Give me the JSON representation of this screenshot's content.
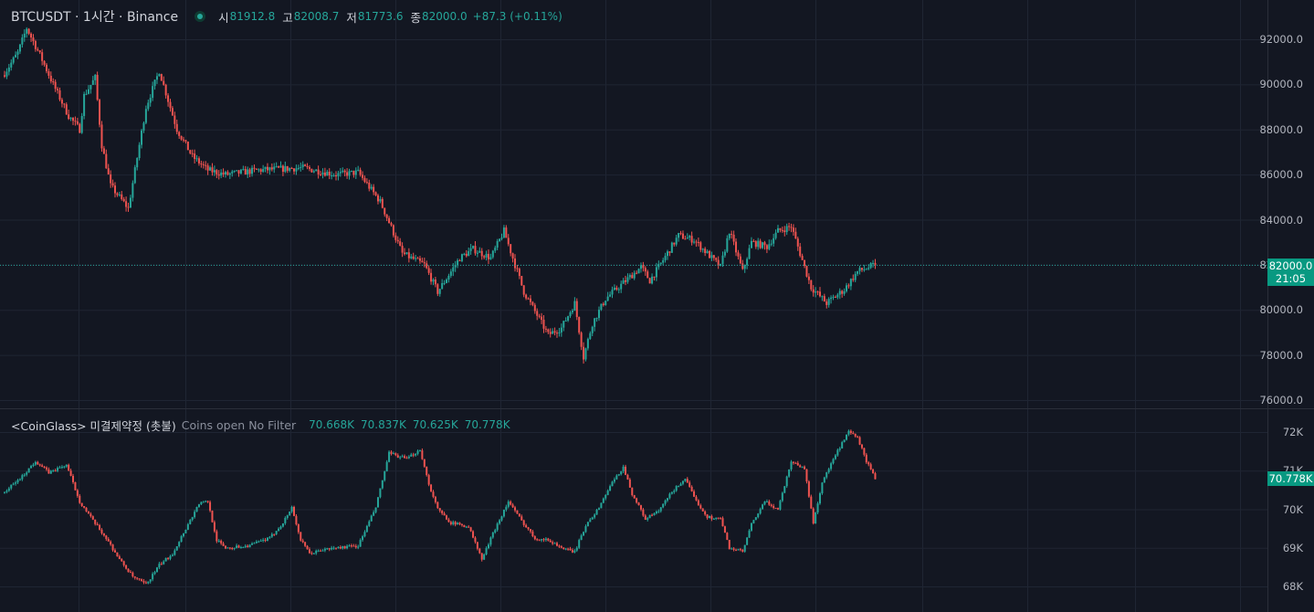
{
  "header": {
    "symbol": "BTCUSDT · 1시간 · Binance",
    "open_label": "시",
    "open": "81912.8",
    "high_label": "고",
    "high": "82008.7",
    "low_label": "저",
    "low": "81773.6",
    "close_label": "종",
    "close": "82000.0",
    "change": "+87.3 (+0.11%)"
  },
  "indicator": {
    "name": "<CoinGlass> 미결제약정 (촛불)",
    "params": "Coins open No Filter",
    "o": "70.668K",
    "h": "70.837K",
    "l": "70.625K",
    "c": "70.778K"
  },
  "price_tag": {
    "price": "82000.0",
    "time": "21:05"
  },
  "oi_tag": "70.778K",
  "colors": {
    "up": "#26a69a",
    "down": "#ef5350",
    "bg": "#131722",
    "grid": "#1f2533",
    "tag": "#089981"
  },
  "chart_data": [
    {
      "type": "candlestick",
      "title": "BTCUSDT · 1시간 · Binance",
      "y_ticks": [
        92000,
        90000,
        88000,
        86000,
        84000,
        82000,
        80000,
        78000,
        76000
      ],
      "y_tick_labels": [
        "92000.0",
        "90000.0",
        "88000.0",
        "86000.0",
        "84000.0",
        "82000.0",
        "80000.0",
        "78000.0",
        "76000.0"
      ],
      "ylim": [
        75700,
        93300
      ],
      "last_price": 82000.0,
      "key_points": [
        [
          0,
          90500
        ],
        [
          6,
          91400
        ],
        [
          10,
          92500
        ],
        [
          16,
          91300
        ],
        [
          22,
          90000
        ],
        [
          29,
          88600
        ],
        [
          34,
          88000
        ],
        [
          36,
          89500
        ],
        [
          41,
          90300
        ],
        [
          44,
          87300
        ],
        [
          48,
          85500
        ],
        [
          56,
          84500
        ],
        [
          64,
          89000
        ],
        [
          70,
          90600
        ],
        [
          78,
          88000
        ],
        [
          85,
          86800
        ],
        [
          92,
          86200
        ],
        [
          100,
          86000
        ],
        [
          115,
          86200
        ],
        [
          135,
          86300
        ],
        [
          150,
          86000
        ],
        [
          160,
          86100
        ],
        [
          170,
          84800
        ],
        [
          180,
          82500
        ],
        [
          190,
          82000
        ],
        [
          196,
          80800
        ],
        [
          206,
          82300
        ],
        [
          212,
          82700
        ],
        [
          220,
          82300
        ],
        [
          226,
          83500
        ],
        [
          235,
          80800
        ],
        [
          246,
          78900
        ],
        [
          252,
          79200
        ],
        [
          258,
          80300
        ],
        [
          262,
          77900
        ],
        [
          266,
          79400
        ],
        [
          272,
          80500
        ],
        [
          280,
          81200
        ],
        [
          288,
          81900
        ],
        [
          292,
          81300
        ],
        [
          296,
          81900
        ],
        [
          305,
          83300
        ],
        [
          312,
          83100
        ],
        [
          318,
          82500
        ],
        [
          324,
          81900
        ],
        [
          328,
          83500
        ],
        [
          334,
          81700
        ],
        [
          338,
          83000
        ],
        [
          345,
          82800
        ],
        [
          350,
          83500
        ],
        [
          356,
          83700
        ],
        [
          360,
          82500
        ],
        [
          365,
          81000
        ],
        [
          372,
          80300
        ],
        [
          380,
          80900
        ],
        [
          386,
          81700
        ],
        [
          394,
          82000
        ]
      ]
    },
    {
      "type": "candlestick",
      "title": "<CoinGlass> 미결제약정 (촛불)",
      "y_ticks": [
        72,
        71,
        70,
        69,
        68
      ],
      "y_tick_labels": [
        "72K",
        "71K",
        "70K",
        "69K",
        "68K"
      ],
      "ylim": [
        67.3,
        72.4
      ],
      "last_value": 70.778,
      "key_points": [
        [
          0,
          70.45
        ],
        [
          4,
          70.65
        ],
        [
          8,
          70.85
        ],
        [
          14,
          71.25
        ],
        [
          20,
          70.95
        ],
        [
          28,
          71.15
        ],
        [
          34,
          70.2
        ],
        [
          40,
          69.7
        ],
        [
          46,
          69.25
        ],
        [
          52,
          68.7
        ],
        [
          58,
          68.25
        ],
        [
          64,
          68.05
        ],
        [
          70,
          68.55
        ],
        [
          76,
          68.85
        ],
        [
          82,
          69.5
        ],
        [
          88,
          70.15
        ],
        [
          92,
          70.2
        ],
        [
          96,
          69.2
        ],
        [
          100,
          69.0
        ],
        [
          110,
          69.05
        ],
        [
          120,
          69.25
        ],
        [
          126,
          69.65
        ],
        [
          130,
          70.05
        ],
        [
          134,
          69.2
        ],
        [
          138,
          68.85
        ],
        [
          144,
          68.95
        ],
        [
          150,
          69.0
        ],
        [
          160,
          69.05
        ],
        [
          168,
          70.05
        ],
        [
          174,
          71.45
        ],
        [
          182,
          71.3
        ],
        [
          188,
          71.55
        ],
        [
          192,
          70.65
        ],
        [
          196,
          70.0
        ],
        [
          202,
          69.65
        ],
        [
          210,
          69.55
        ],
        [
          216,
          68.7
        ],
        [
          222,
          69.5
        ],
        [
          228,
          70.2
        ],
        [
          234,
          69.7
        ],
        [
          240,
          69.25
        ],
        [
          246,
          69.2
        ],
        [
          254,
          68.95
        ],
        [
          258,
          68.9
        ],
        [
          264,
          69.7
        ],
        [
          268,
          69.95
        ],
        [
          274,
          70.6
        ],
        [
          280,
          71.1
        ],
        [
          284,
          70.4
        ],
        [
          290,
          69.75
        ],
        [
          296,
          69.95
        ],
        [
          302,
          70.45
        ],
        [
          308,
          70.8
        ],
        [
          312,
          70.3
        ],
        [
          318,
          69.8
        ],
        [
          324,
          69.75
        ],
        [
          328,
          69.0
        ],
        [
          334,
          68.9
        ],
        [
          338,
          69.6
        ],
        [
          344,
          70.2
        ],
        [
          350,
          70.0
        ],
        [
          356,
          71.25
        ],
        [
          362,
          71.05
        ],
        [
          366,
          69.65
        ],
        [
          370,
          70.7
        ],
        [
          376,
          71.4
        ],
        [
          382,
          72.0
        ],
        [
          386,
          71.85
        ],
        [
          390,
          71.25
        ],
        [
          394,
          70.778
        ]
      ]
    }
  ]
}
